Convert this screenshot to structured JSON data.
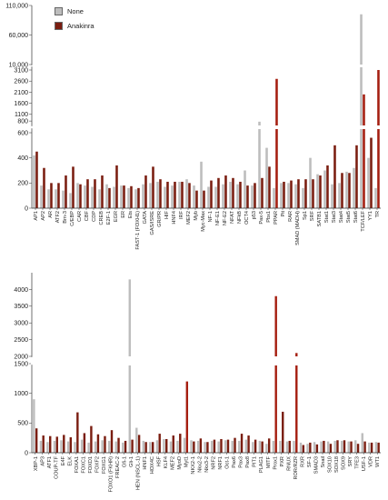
{
  "colors": {
    "none": "#bdbdbd",
    "anakinra": "#7a1d10",
    "anakinra_tall": "#a51e10",
    "axis": "#333333",
    "break": "#ffffff"
  },
  "legend": {
    "none_label": "None",
    "anakinra_label": "Anakinra"
  },
  "chart_data": [
    {
      "type": "bar",
      "panel": "top",
      "xlabel": "",
      "ylabel": "",
      "ylim": [
        0,
        110000
      ],
      "y_breaks": [
        [
          600,
          3100
        ],
        [
          3100,
          10000
        ]
      ],
      "grid": false,
      "legend_position": "top-left",
      "yticks": [
        "0",
        "200",
        "400",
        "600",
        "800",
        "1100",
        "1600",
        "2100",
        "2600",
        "3100",
        "10,000",
        "60,000",
        "110,000"
      ],
      "categories": [
        "AP1",
        "AP2",
        "AR",
        "ATF2",
        "Brn-3",
        "C/EBP",
        "CAR",
        "CBF",
        "CDP",
        "CREB",
        "E2F-1",
        "EGR",
        "ER",
        "Ets",
        "FAST-1 (FOXH1)",
        "GATA",
        "GAS/ISRE",
        "GR/PR",
        "HIF",
        "HNF4",
        "IRF",
        "MEF2",
        "Myb",
        "Myc-Max",
        "NF-1",
        "NF-E1",
        "NF-E2",
        "NFAT",
        "NFkB",
        "OCT4",
        "p53",
        "Pax-5",
        "Pbx1",
        "PPAR",
        "Pit",
        "RAR",
        "SMAD (MADH)",
        "Sp1",
        "SRF",
        "SATB1",
        "Stat1",
        "Stat3",
        "Stat4",
        "Stat5",
        "Stat6",
        "TCF/LEF",
        "YY1",
        "TR"
      ],
      "series": [
        {
          "name": "None",
          "values": [
            420,
            180,
            150,
            150,
            140,
            120,
            200,
            180,
            170,
            150,
            190,
            170,
            180,
            160,
            150,
            190,
            200,
            210,
            170,
            180,
            210,
            230,
            180,
            370,
            170,
            170,
            190,
            210,
            190,
            300,
            180,
            770,
            480,
            160,
            200,
            200,
            190,
            160,
            400,
            270,
            300,
            190,
            200,
            290,
            320,
            95000,
            400,
            160
          ]
        },
        {
          "name": "Anakinra",
          "values": [
            450,
            320,
            200,
            200,
            260,
            330,
            190,
            230,
            230,
            260,
            160,
            340,
            180,
            175,
            160,
            260,
            330,
            230,
            210,
            210,
            210,
            200,
            140,
            140,
            220,
            240,
            260,
            240,
            210,
            180,
            200,
            240,
            330,
            2700,
            210,
            220,
            230,
            230,
            230,
            260,
            340,
            500,
            280,
            280,
            500,
            2000,
            560,
            3100
          ]
        }
      ]
    },
    {
      "type": "bar",
      "panel": "bottom",
      "xlabel": "",
      "ylabel": "",
      "ylim": [
        0,
        4500
      ],
      "y_breaks": [
        [
          1500,
          2000
        ]
      ],
      "grid": false,
      "legend_position": "",
      "yticks": [
        "0",
        "500",
        "1000",
        "1500",
        "2000",
        "2500",
        "3000",
        "3500",
        "4000"
      ],
      "categories": [
        "XBP-1",
        "AP3",
        "ATF1",
        "COUP-TF",
        "E4F",
        "ELK",
        "FOXA1",
        "FOXC1",
        "FOXD1",
        "FOXF2",
        "FOXG1",
        "FOXO1 (FKHR)",
        "FREAC-2",
        "Gfi-1",
        "Gli-1",
        "HEN (NSCL-1)",
        "HNF1",
        "HOX4C",
        "HSF",
        "KLF4",
        "MEF2",
        "MyoD",
        "Myt1",
        "NKX2-1",
        "Nkx2-2",
        "Nkx3-2",
        "NRF2",
        "NRF1",
        "Oct-1",
        "Pax6",
        "Pax3",
        "Pax8",
        "PIT1",
        "PLAG1",
        "MITF",
        "Prox1",
        "PXR",
        "RNUX",
        "ROR/RZR",
        "RXR",
        "SF-1",
        "SMAD3",
        "Snail",
        "SOX10",
        "SOX18",
        "SOX9",
        "SRY",
        "TFE3",
        "USF-1",
        "VDR",
        "WT1"
      ],
      "series": [
        {
          "name": "None",
          "values": [
            900,
            200,
            180,
            200,
            210,
            190,
            180,
            220,
            170,
            190,
            210,
            200,
            190,
            170,
            4300,
            420,
            200,
            180,
            210,
            230,
            190,
            200,
            250,
            210,
            200,
            180,
            200,
            190,
            210,
            200,
            200,
            220,
            180,
            200,
            150,
            200,
            200,
            190,
            200,
            170,
            150,
            180,
            190,
            190,
            200,
            200,
            190,
            210,
            330,
            170,
            180
          ]
        },
        {
          "name": "Anakinra",
          "values": [
            410,
            290,
            280,
            270,
            300,
            260,
            680,
            330,
            450,
            310,
            280,
            380,
            250,
            200,
            220,
            300,
            180,
            180,
            320,
            230,
            290,
            320,
            1200,
            190,
            240,
            180,
            220,
            230,
            220,
            250,
            320,
            290,
            220,
            190,
            240,
            3800,
            690,
            200,
            2100,
            130,
            170,
            140,
            200,
            150,
            210,
            210,
            190,
            150,
            190,
            170,
            170
          ]
        }
      ]
    }
  ]
}
